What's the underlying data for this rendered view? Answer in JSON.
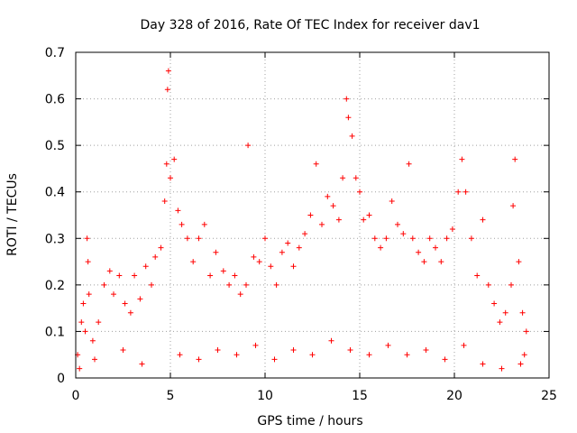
{
  "chart_data": {
    "type": "scatter",
    "title": "Day 328 of 2016, Rate Of TEC Index for receiver dav1",
    "xlabel": "GPS time / hours",
    "ylabel": "ROTI / TECUs",
    "xlim": [
      0,
      25
    ],
    "ylim": [
      0,
      0.7
    ],
    "x_ticks": [
      "0",
      "5",
      "10",
      "15",
      "20",
      "25"
    ],
    "y_ticks": [
      "0",
      "0.1",
      "0.2",
      "0.3",
      "0.4",
      "0.5",
      "0.6",
      "0.7"
    ],
    "grid": true,
    "marker": "+",
    "color": "#ff0000",
    "series": [
      {
        "points": [
          [
            0.1,
            0.05
          ],
          [
            0.3,
            0.12
          ],
          [
            0.4,
            0.16
          ],
          [
            0.5,
            0.1
          ],
          [
            0.6,
            0.3
          ],
          [
            0.65,
            0.25
          ],
          [
            0.7,
            0.18
          ],
          [
            0.9,
            0.08
          ],
          [
            1.2,
            0.12
          ],
          [
            1.5,
            0.2
          ],
          [
            1.8,
            0.23
          ],
          [
            2.0,
            0.18
          ],
          [
            2.3,
            0.22
          ],
          [
            2.6,
            0.16
          ],
          [
            2.9,
            0.14
          ],
          [
            3.1,
            0.22
          ],
          [
            3.4,
            0.17
          ],
          [
            3.7,
            0.24
          ],
          [
            4.0,
            0.2
          ],
          [
            4.2,
            0.26
          ],
          [
            4.5,
            0.28
          ],
          [
            4.7,
            0.38
          ],
          [
            4.8,
            0.46
          ],
          [
            4.85,
            0.62
          ],
          [
            4.9,
            0.66
          ],
          [
            5.0,
            0.43
          ],
          [
            5.2,
            0.47
          ],
          [
            5.4,
            0.36
          ],
          [
            5.6,
            0.33
          ],
          [
            5.9,
            0.3
          ],
          [
            6.2,
            0.25
          ],
          [
            6.5,
            0.3
          ],
          [
            6.8,
            0.33
          ],
          [
            7.1,
            0.22
          ],
          [
            7.4,
            0.27
          ],
          [
            7.8,
            0.23
          ],
          [
            8.1,
            0.2
          ],
          [
            8.4,
            0.22
          ],
          [
            8.7,
            0.18
          ],
          [
            9.0,
            0.2
          ],
          [
            9.1,
            0.5
          ],
          [
            9.4,
            0.26
          ],
          [
            9.7,
            0.25
          ],
          [
            10.0,
            0.3
          ],
          [
            10.3,
            0.24
          ],
          [
            10.6,
            0.2
          ],
          [
            10.9,
            0.27
          ],
          [
            11.2,
            0.29
          ],
          [
            11.5,
            0.24
          ],
          [
            11.8,
            0.28
          ],
          [
            12.1,
            0.31
          ],
          [
            12.4,
            0.35
          ],
          [
            12.7,
            0.46
          ],
          [
            13.0,
            0.33
          ],
          [
            13.3,
            0.39
          ],
          [
            13.6,
            0.37
          ],
          [
            13.9,
            0.34
          ],
          [
            14.1,
            0.43
          ],
          [
            14.3,
            0.6
          ],
          [
            14.4,
            0.56
          ],
          [
            14.6,
            0.52
          ],
          [
            14.8,
            0.43
          ],
          [
            15.0,
            0.4
          ],
          [
            15.2,
            0.34
          ],
          [
            15.5,
            0.35
          ],
          [
            15.8,
            0.3
          ],
          [
            16.1,
            0.28
          ],
          [
            16.4,
            0.3
          ],
          [
            16.7,
            0.38
          ],
          [
            17.0,
            0.33
          ],
          [
            17.3,
            0.31
          ],
          [
            17.6,
            0.46
          ],
          [
            17.8,
            0.3
          ],
          [
            18.1,
            0.27
          ],
          [
            18.4,
            0.25
          ],
          [
            18.7,
            0.3
          ],
          [
            19.0,
            0.28
          ],
          [
            19.3,
            0.25
          ],
          [
            19.6,
            0.3
          ],
          [
            19.9,
            0.32
          ],
          [
            20.2,
            0.4
          ],
          [
            20.4,
            0.47
          ],
          [
            20.6,
            0.4
          ],
          [
            20.9,
            0.3
          ],
          [
            21.2,
            0.22
          ],
          [
            21.5,
            0.34
          ],
          [
            21.8,
            0.2
          ],
          [
            22.1,
            0.16
          ],
          [
            22.4,
            0.12
          ],
          [
            22.7,
            0.14
          ],
          [
            23.0,
            0.2
          ],
          [
            23.1,
            0.37
          ],
          [
            23.2,
            0.47
          ],
          [
            23.4,
            0.25
          ],
          [
            23.6,
            0.14
          ],
          [
            23.8,
            0.1
          ],
          [
            0.2,
            0.02
          ],
          [
            1.0,
            0.04
          ],
          [
            2.5,
            0.06
          ],
          [
            3.5,
            0.03
          ],
          [
            5.5,
            0.05
          ],
          [
            6.5,
            0.04
          ],
          [
            7.5,
            0.06
          ],
          [
            8.5,
            0.05
          ],
          [
            9.5,
            0.07
          ],
          [
            10.5,
            0.04
          ],
          [
            11.5,
            0.06
          ],
          [
            12.5,
            0.05
          ],
          [
            13.5,
            0.08
          ],
          [
            14.5,
            0.06
          ],
          [
            15.5,
            0.05
          ],
          [
            16.5,
            0.07
          ],
          [
            17.5,
            0.05
          ],
          [
            18.5,
            0.06
          ],
          [
            19.5,
            0.04
          ],
          [
            20.5,
            0.07
          ],
          [
            21.5,
            0.03
          ],
          [
            22.5,
            0.02
          ],
          [
            23.5,
            0.03
          ],
          [
            23.7,
            0.05
          ]
        ]
      }
    ]
  }
}
